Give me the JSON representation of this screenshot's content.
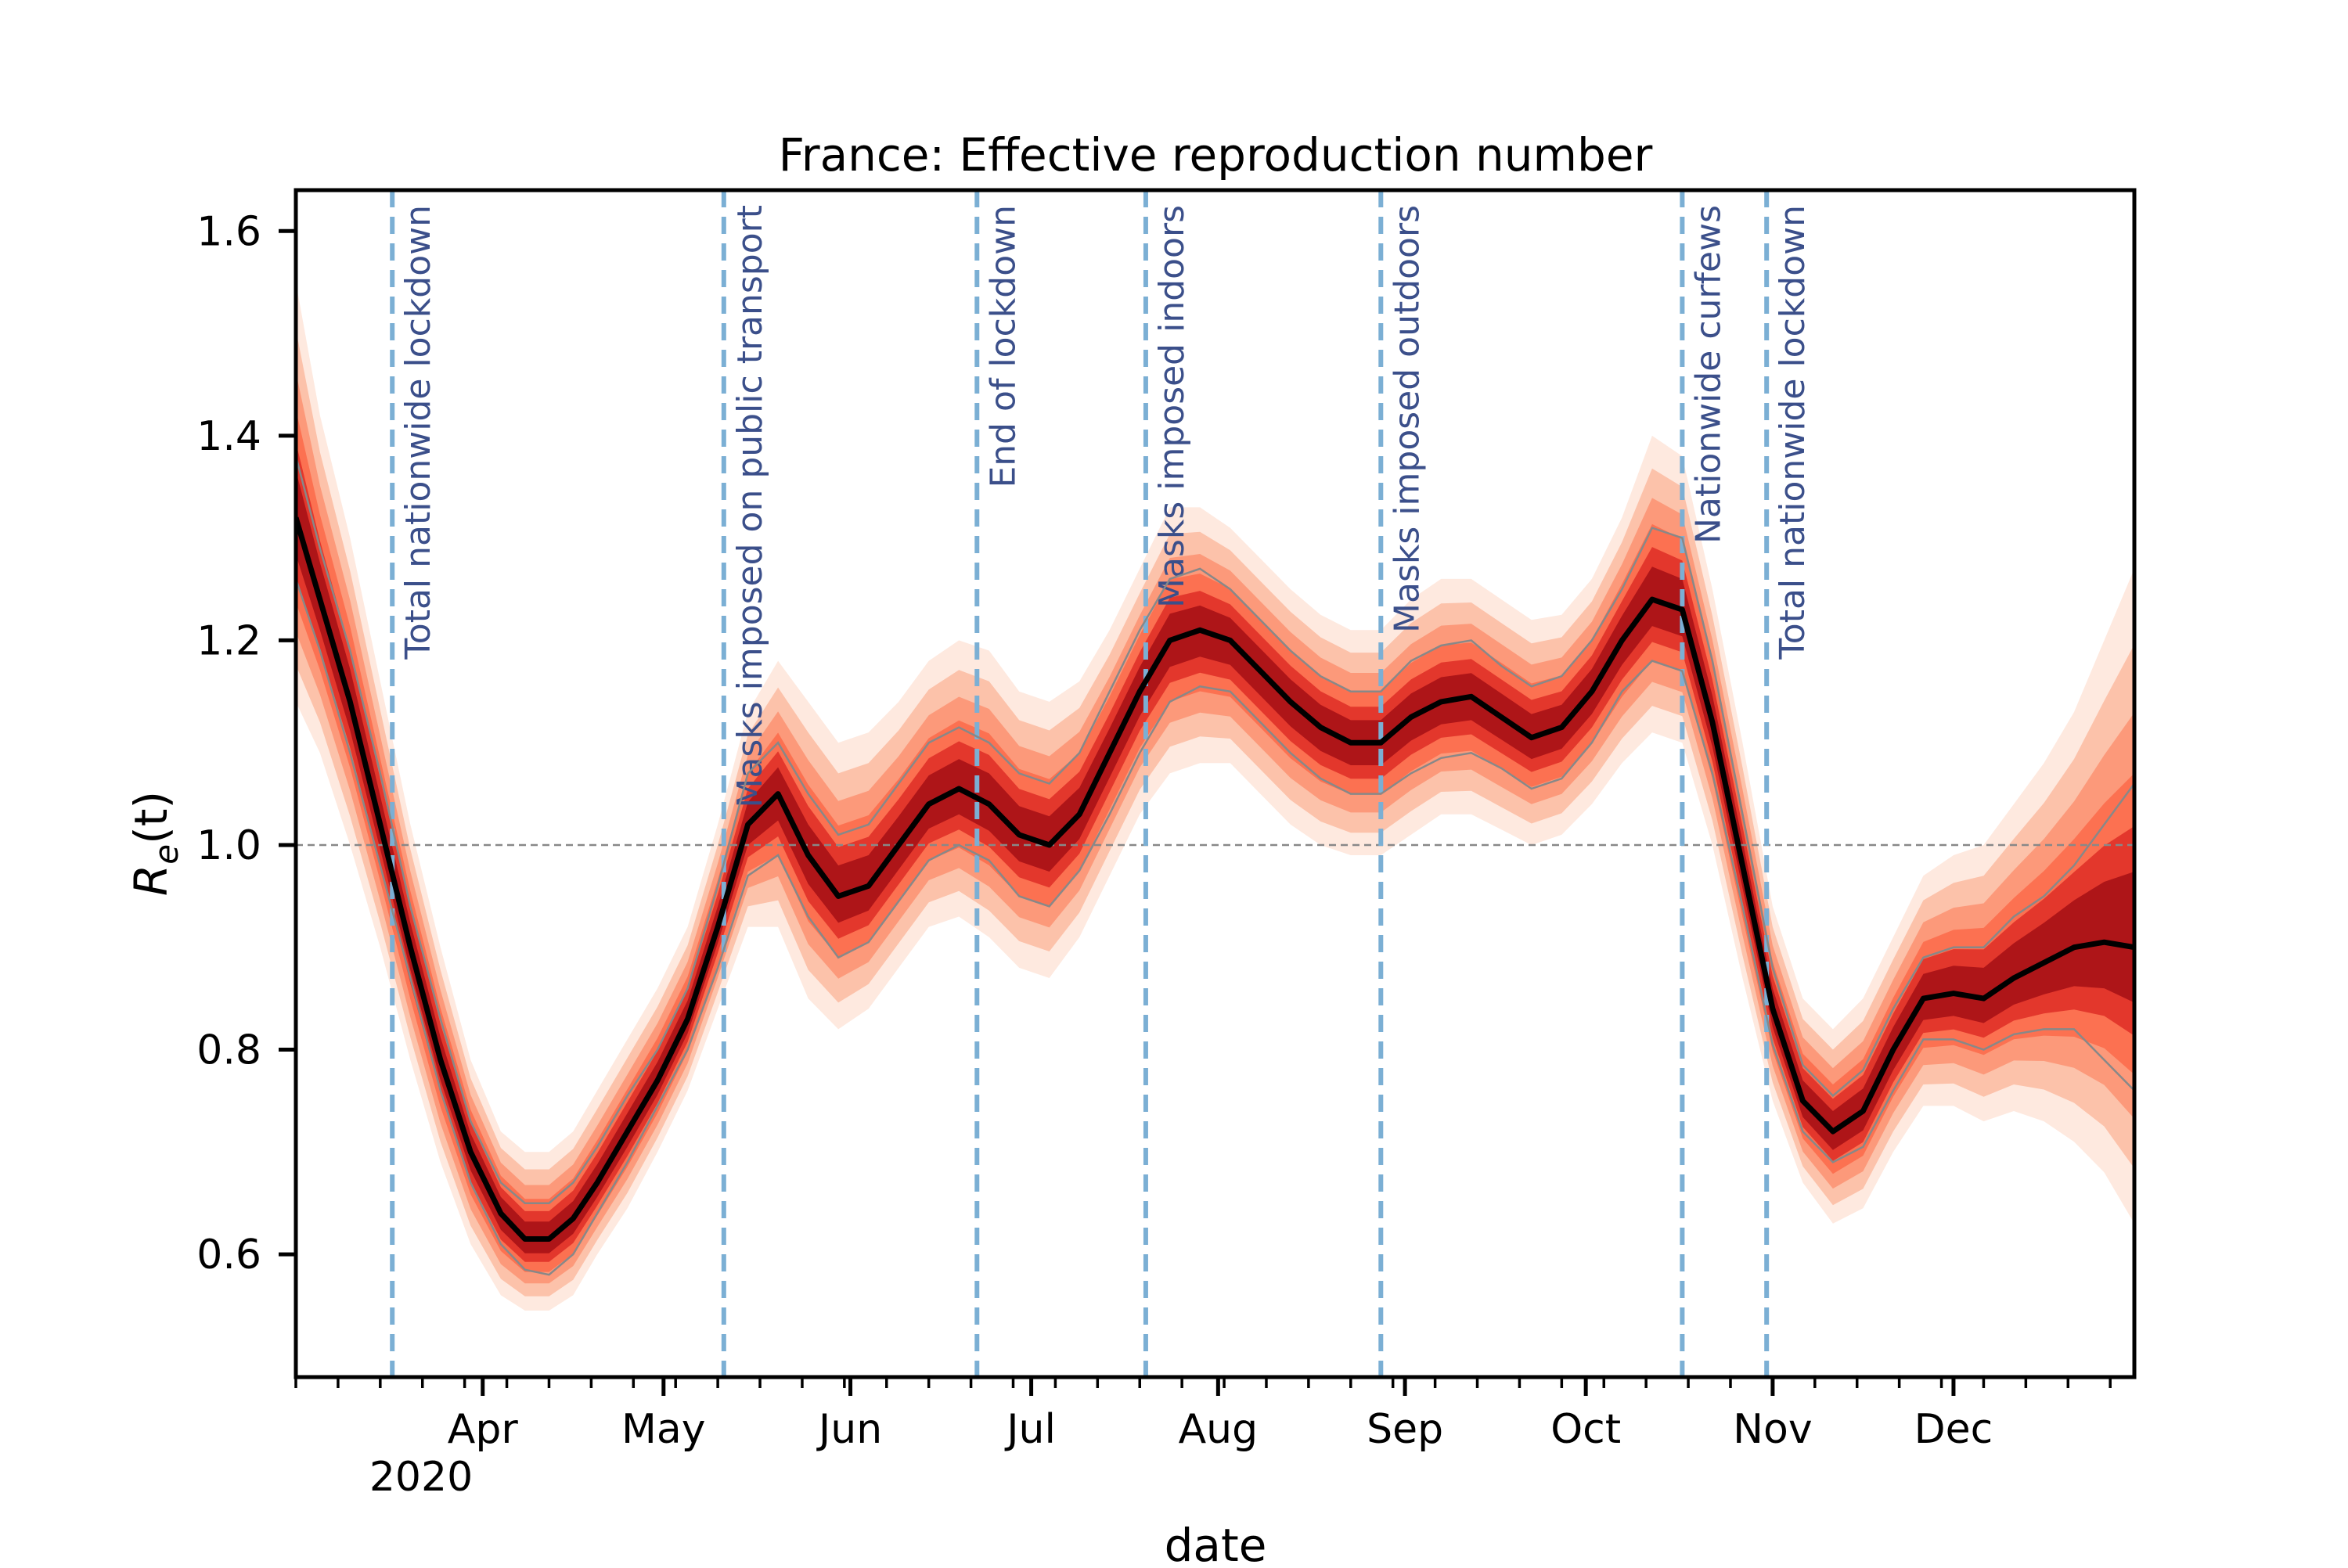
{
  "chart_data": {
    "type": "line",
    "title": "France: Effective reproduction number",
    "xlabel": "date",
    "ylabel_main": "R",
    "ylabel_sub": "e",
    "ylabel_arg": "(t)",
    "xlim": [
      "2020-03-01",
      "2020-12-31"
    ],
    "ylim": [
      0.48,
      1.64
    ],
    "y_ticks": [
      0.6,
      0.8,
      1.0,
      1.2,
      1.4,
      1.6
    ],
    "y_tick_labels": [
      "0.6",
      "0.8",
      "1.0",
      "1.2",
      "1.4",
      "1.6"
    ],
    "x_ticks": [
      "2020-04-01",
      "2020-05-01",
      "2020-06-01",
      "2020-07-01",
      "2020-08-01",
      "2020-09-01",
      "2020-10-01",
      "2020-11-01",
      "2020-12-01"
    ],
    "x_tick_labels": [
      "Apr",
      "May",
      "Jun",
      "Jul",
      "Aug",
      "Sep",
      "Oct",
      "Nov",
      "Dec"
    ],
    "year_label": "2020",
    "reference_line": 1.0,
    "median_color": "#000000",
    "interval_color": "#888888",
    "band_colors": [
      "#fee5d9",
      "#fcbba1",
      "#fc9272",
      "#fb6a4a",
      "#de2d26",
      "#a50f15"
    ],
    "event_color": "#7bafd4",
    "event_label_color": "#3b4f8a",
    "events": [
      {
        "date": "2020-03-17",
        "label": "Total nationwide lockdown"
      },
      {
        "date": "2020-05-11",
        "label": "Masks imposed on public transport"
      },
      {
        "date": "2020-06-22",
        "label": "End of lockdown"
      },
      {
        "date": "2020-07-20",
        "label": "Masks imposed indoors"
      },
      {
        "date": "2020-08-28",
        "label": "Masks imposed outdoors"
      },
      {
        "date": "2020-10-17",
        "label": "Nationwide curfews"
      },
      {
        "date": "2020-10-31",
        "label": "Total nationwide lockdown"
      }
    ],
    "series": [
      {
        "x": [
          "2020-03-01",
          "2020-03-05",
          "2020-03-10",
          "2020-03-15",
          "2020-03-20",
          "2020-03-25",
          "2020-03-30",
          "2020-04-04",
          "2020-04-08",
          "2020-04-12",
          "2020-04-16",
          "2020-04-20",
          "2020-04-25",
          "2020-04-30",
          "2020-05-05",
          "2020-05-10",
          "2020-05-15",
          "2020-05-20",
          "2020-05-25",
          "2020-05-30",
          "2020-06-04",
          "2020-06-09",
          "2020-06-14",
          "2020-06-19",
          "2020-06-24",
          "2020-06-29",
          "2020-07-04",
          "2020-07-09",
          "2020-07-14",
          "2020-07-19",
          "2020-07-24",
          "2020-07-29",
          "2020-08-03",
          "2020-08-08",
          "2020-08-13",
          "2020-08-18",
          "2020-08-23",
          "2020-08-28",
          "2020-09-02",
          "2020-09-07",
          "2020-09-12",
          "2020-09-17",
          "2020-09-22",
          "2020-09-27",
          "2020-10-02",
          "2020-10-07",
          "2020-10-12",
          "2020-10-17",
          "2020-10-22",
          "2020-10-27",
          "2020-11-01",
          "2020-11-06",
          "2020-11-11",
          "2020-11-16",
          "2020-11-21",
          "2020-11-26",
          "2020-12-01",
          "2020-12-06",
          "2020-12-11",
          "2020-12-16",
          "2020-12-21",
          "2020-12-26",
          "2020-12-31"
        ],
        "median": [
          1.32,
          1.24,
          1.14,
          1.02,
          0.9,
          0.79,
          0.7,
          0.64,
          0.615,
          0.615,
          0.635,
          0.67,
          0.72,
          0.77,
          0.83,
          0.92,
          1.02,
          1.05,
          0.99,
          0.95,
          0.96,
          1.0,
          1.04,
          1.055,
          1.04,
          1.01,
          1.0,
          1.03,
          1.09,
          1.15,
          1.2,
          1.21,
          1.2,
          1.17,
          1.14,
          1.115,
          1.1,
          1.1,
          1.125,
          1.14,
          1.145,
          1.125,
          1.105,
          1.115,
          1.15,
          1.2,
          1.24,
          1.23,
          1.12,
          0.98,
          0.84,
          0.75,
          0.72,
          0.74,
          0.8,
          0.85,
          0.855,
          0.85,
          0.87,
          0.885,
          0.9,
          0.905,
          0.9
        ],
        "lower": [
          1.26,
          1.19,
          1.09,
          0.98,
          0.87,
          0.76,
          0.67,
          0.61,
          0.585,
          0.58,
          0.6,
          0.64,
          0.69,
          0.745,
          0.8,
          0.88,
          0.97,
          0.99,
          0.93,
          0.89,
          0.905,
          0.945,
          0.985,
          1.0,
          0.985,
          0.95,
          0.94,
          0.975,
          1.03,
          1.09,
          1.14,
          1.155,
          1.15,
          1.12,
          1.09,
          1.065,
          1.05,
          1.05,
          1.07,
          1.085,
          1.09,
          1.075,
          1.055,
          1.065,
          1.1,
          1.15,
          1.18,
          1.17,
          1.07,
          0.94,
          0.805,
          0.72,
          0.69,
          0.705,
          0.76,
          0.81,
          0.81,
          0.8,
          0.815,
          0.82,
          0.82,
          0.79,
          0.76
        ],
        "upper": [
          1.38,
          1.29,
          1.19,
          1.07,
          0.94,
          0.83,
          0.73,
          0.67,
          0.65,
          0.65,
          0.67,
          0.705,
          0.755,
          0.8,
          0.86,
          0.96,
          1.07,
          1.1,
          1.05,
          1.01,
          1.02,
          1.06,
          1.1,
          1.115,
          1.1,
          1.07,
          1.06,
          1.09,
          1.15,
          1.21,
          1.26,
          1.27,
          1.25,
          1.22,
          1.19,
          1.165,
          1.15,
          1.15,
          1.18,
          1.195,
          1.2,
          1.175,
          1.155,
          1.165,
          1.2,
          1.25,
          1.31,
          1.3,
          1.18,
          1.03,
          0.88,
          0.785,
          0.755,
          0.78,
          0.84,
          0.89,
          0.9,
          0.9,
          0.93,
          0.95,
          0.98,
          1.02,
          1.06
        ],
        "band_outer_lower": [
          1.14,
          1.09,
          1.0,
          0.9,
          0.79,
          0.69,
          0.61,
          0.56,
          0.545,
          0.545,
          0.56,
          0.6,
          0.645,
          0.7,
          0.76,
          0.84,
          0.92,
          0.92,
          0.85,
          0.82,
          0.84,
          0.88,
          0.92,
          0.93,
          0.91,
          0.88,
          0.87,
          0.91,
          0.97,
          1.03,
          1.07,
          1.08,
          1.08,
          1.05,
          1.02,
          1.0,
          0.99,
          0.99,
          1.01,
          1.03,
          1.03,
          1.015,
          1.0,
          1.01,
          1.04,
          1.08,
          1.11,
          1.1,
          1.0,
          0.87,
          0.75,
          0.67,
          0.63,
          0.645,
          0.7,
          0.745,
          0.745,
          0.73,
          0.74,
          0.73,
          0.71,
          0.68,
          0.63
        ],
        "band_outer_upper": [
          1.55,
          1.42,
          1.3,
          1.16,
          1.02,
          0.9,
          0.79,
          0.72,
          0.7,
          0.7,
          0.72,
          0.76,
          0.81,
          0.86,
          0.92,
          1.02,
          1.13,
          1.18,
          1.14,
          1.1,
          1.11,
          1.14,
          1.18,
          1.2,
          1.19,
          1.15,
          1.14,
          1.16,
          1.21,
          1.27,
          1.33,
          1.33,
          1.31,
          1.28,
          1.25,
          1.225,
          1.21,
          1.21,
          1.24,
          1.26,
          1.26,
          1.24,
          1.22,
          1.225,
          1.26,
          1.32,
          1.4,
          1.38,
          1.25,
          1.1,
          0.94,
          0.85,
          0.82,
          0.85,
          0.91,
          0.97,
          0.99,
          1.0,
          1.04,
          1.08,
          1.13,
          1.2,
          1.27
        ]
      }
    ]
  }
}
